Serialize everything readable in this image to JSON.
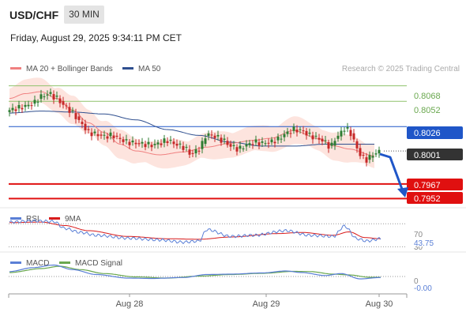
{
  "header": {
    "symbol": "USD/CHF",
    "timeframe": "30 MIN",
    "datetime": "Friday, August 29, 2025 9:34:11 PM CET",
    "research": "Research © 2025 Trading Central"
  },
  "legend": {
    "ma20": "MA 20 + Bollinger Bands",
    "ma50": "MA 50",
    "rsi": "RSI",
    "rsi_ma": "9MA",
    "macd": "MACD",
    "macd_signal": "MACD Signal"
  },
  "colors": {
    "ma20": "#f08080",
    "ma50": "#2f4f8f",
    "band_fill": "#fde4de",
    "up_candle": "#2e7d32",
    "down_candle": "#c62828",
    "resistance": "#8fc26b",
    "pivot": "#1f56c8",
    "support": "#e01010",
    "arrow": "#1f56c8",
    "rsi": "#5a7fd6",
    "rsi_ma": "#d81b1b",
    "macd": "#5a7fd6",
    "macd_signal": "#6aa84f"
  },
  "levels": {
    "resistance": [
      "0.8068",
      "0.8052"
    ],
    "pivot": "0.8026",
    "last": "0.8001",
    "support": [
      "0.7967",
      "0.7952"
    ]
  },
  "rsi_labels": {
    "upper": "70",
    "value": "43.75",
    "lower": "30"
  },
  "macd_labels": {
    "zero": "0",
    "value": "-0.00"
  },
  "x_axis": [
    "Aug 28",
    "Aug 29",
    "Aug 30"
  ],
  "chart_data": [
    {
      "type": "candlestick",
      "title": "USD/CHF 30 MIN",
      "y_unit": "price",
      "ylim": [
        0.7945,
        0.8075
      ],
      "x_ticks": [
        "Aug 28",
        "Aug 29",
        "Aug 30"
      ],
      "levels": {
        "resistance": [
          0.8068,
          0.8052
        ],
        "pivot": 0.8026,
        "last": 0.8001,
        "support": [
          0.7967,
          0.7952
        ]
      },
      "series": [
        {
          "name": "MA 20 + Bollinger Bands",
          "anchors": [
            [
              0,
              0.8055
            ],
            [
              10,
              0.806
            ],
            [
              20,
              0.8062
            ],
            [
              30,
              0.8055
            ],
            [
              40,
              0.8043
            ],
            [
              50,
              0.803
            ],
            [
              60,
              0.802
            ],
            [
              70,
              0.8008
            ],
            [
              80,
              0.8001
            ],
            [
              95,
              0.7997
            ],
            [
              110,
              0.8
            ],
            [
              125,
              0.8005
            ],
            [
              140,
              0.8009
            ],
            [
              155,
              0.8012
            ],
            [
              165,
              0.8014
            ],
            [
              180,
              0.8022
            ],
            [
              195,
              0.8014
            ],
            [
              206,
              0.8006
            ],
            [
              215,
              0.8003
            ],
            [
              231,
              0.7996
            ]
          ]
        },
        {
          "name": "MA 50",
          "anchors": [
            [
              0,
              0.804
            ],
            [
              20,
              0.8042
            ],
            [
              40,
              0.8041
            ],
            [
              60,
              0.8039
            ],
            [
              80,
              0.8033
            ],
            [
              100,
              0.8023
            ],
            [
              120,
              0.8017
            ],
            [
              140,
              0.801
            ],
            [
              160,
              0.8006
            ],
            [
              180,
              0.8006
            ],
            [
              200,
              0.8008
            ],
            [
              215,
              0.8008
            ],
            [
              231,
              0.8008
            ]
          ]
        },
        {
          "name": "Close",
          "anchors": [
            [
              0,
              0.8043
            ],
            [
              5,
              0.8045
            ],
            [
              10,
              0.8047
            ],
            [
              15,
              0.805
            ],
            [
              20,
              0.8057
            ],
            [
              25,
              0.806
            ],
            [
              30,
              0.8055
            ],
            [
              35,
              0.8047
            ],
            [
              40,
              0.804
            ],
            [
              45,
              0.803
            ],
            [
              50,
              0.802
            ],
            [
              55,
              0.8018
            ],
            [
              60,
              0.8016
            ],
            [
              65,
              0.8017
            ],
            [
              70,
              0.8013
            ],
            [
              75,
              0.801
            ],
            [
              80,
              0.8009
            ],
            [
              85,
              0.8008
            ],
            [
              90,
              0.8007
            ],
            [
              95,
              0.8009
            ],
            [
              100,
              0.8012
            ],
            [
              105,
              0.8008
            ],
            [
              110,
              0.8005
            ],
            [
              115,
              0.7998
            ],
            [
              120,
              0.8003
            ],
            [
              125,
              0.8018
            ],
            [
              130,
              0.8016
            ],
            [
              135,
              0.8012
            ],
            [
              140,
              0.8006
            ],
            [
              145,
              0.8003
            ],
            [
              150,
              0.8007
            ],
            [
              155,
              0.801
            ],
            [
              160,
              0.8009
            ],
            [
              165,
              0.801
            ],
            [
              170,
              0.8013
            ],
            [
              175,
              0.8019
            ],
            [
              180,
              0.8023
            ],
            [
              185,
              0.8022
            ],
            [
              190,
              0.8017
            ],
            [
              195,
              0.8014
            ],
            [
              200,
              0.801
            ],
            [
              203,
              0.8005
            ],
            [
              207,
              0.8015
            ],
            [
              212,
              0.8024
            ],
            [
              215,
              0.8022
            ],
            [
              218,
              0.8011
            ],
            [
              222,
              0.7997
            ],
            [
              226,
              0.7992
            ],
            [
              231,
              0.7998
            ],
            [
              235,
              0.8001
            ]
          ]
        }
      ]
    },
    {
      "type": "line",
      "title": "RSI",
      "ylim": [
        25,
        80
      ],
      "levels": [
        70,
        30
      ],
      "last_value": 43.75,
      "series": [
        {
          "name": "RSI",
          "anchors": [
            [
              0,
              73
            ],
            [
              15,
              75
            ],
            [
              28,
              74
            ],
            [
              35,
              62
            ],
            [
              45,
              55
            ],
            [
              55,
              50
            ],
            [
              75,
              45
            ],
            [
              95,
              42
            ],
            [
              110,
              38
            ],
            [
              120,
              40
            ],
            [
              125,
              60
            ],
            [
              140,
              48
            ],
            [
              155,
              50
            ],
            [
              175,
              58
            ],
            [
              190,
              50
            ],
            [
              205,
              48
            ],
            [
              212,
              66
            ],
            [
              220,
              44
            ],
            [
              226,
              40
            ],
            [
              235,
              44
            ]
          ]
        },
        {
          "name": "9MA",
          "anchors": [
            [
              0,
              72
            ],
            [
              20,
              73
            ],
            [
              35,
              67
            ],
            [
              50,
              58
            ],
            [
              75,
              48
            ],
            [
              100,
              44
            ],
            [
              120,
              43
            ],
            [
              140,
              47
            ],
            [
              170,
              53
            ],
            [
              185,
              55
            ],
            [
              205,
              50
            ],
            [
              215,
              56
            ],
            [
              225,
              46
            ],
            [
              235,
              44
            ]
          ]
        }
      ]
    },
    {
      "type": "line",
      "title": "MACD",
      "ylim": [
        -0.0008,
        0.0008
      ],
      "last_value": -0.0,
      "series": [
        {
          "name": "MACD",
          "anchors": [
            [
              0,
              0.00025
            ],
            [
              15,
              0.00045
            ],
            [
              28,
              0.00058
            ],
            [
              40,
              0.00035
            ],
            [
              55,
              0.0001
            ],
            [
              75,
              -8e-05
            ],
            [
              90,
              -0.0001
            ],
            [
              110,
              -5e-05
            ],
            [
              125,
              0.0001
            ],
            [
              140,
              0.00012
            ],
            [
              160,
              0.00018
            ],
            [
              175,
              0.00028
            ],
            [
              185,
              0.0002
            ],
            [
              200,
              5e-05
            ],
            [
              210,
              0.00015
            ],
            [
              222,
              -0.00012
            ],
            [
              235,
              -5e-05
            ]
          ]
        },
        {
          "name": "MACD Signal",
          "anchors": [
            [
              0,
              0.0002
            ],
            [
              20,
              0.0004
            ],
            [
              32,
              0.00052
            ],
            [
              45,
              0.00035
            ],
            [
              60,
              0.00015
            ],
            [
              80,
              -2e-05
            ],
            [
              100,
              -8e-05
            ],
            [
              120,
              2e-05
            ],
            [
              140,
              0.0001
            ],
            [
              160,
              0.00016
            ],
            [
              180,
              0.00026
            ],
            [
              190,
              0.00025
            ],
            [
              205,
              0.00012
            ],
            [
              215,
              8e-05
            ],
            [
              228,
              -4e-05
            ],
            [
              235,
              -4e-05
            ]
          ]
        }
      ]
    }
  ]
}
